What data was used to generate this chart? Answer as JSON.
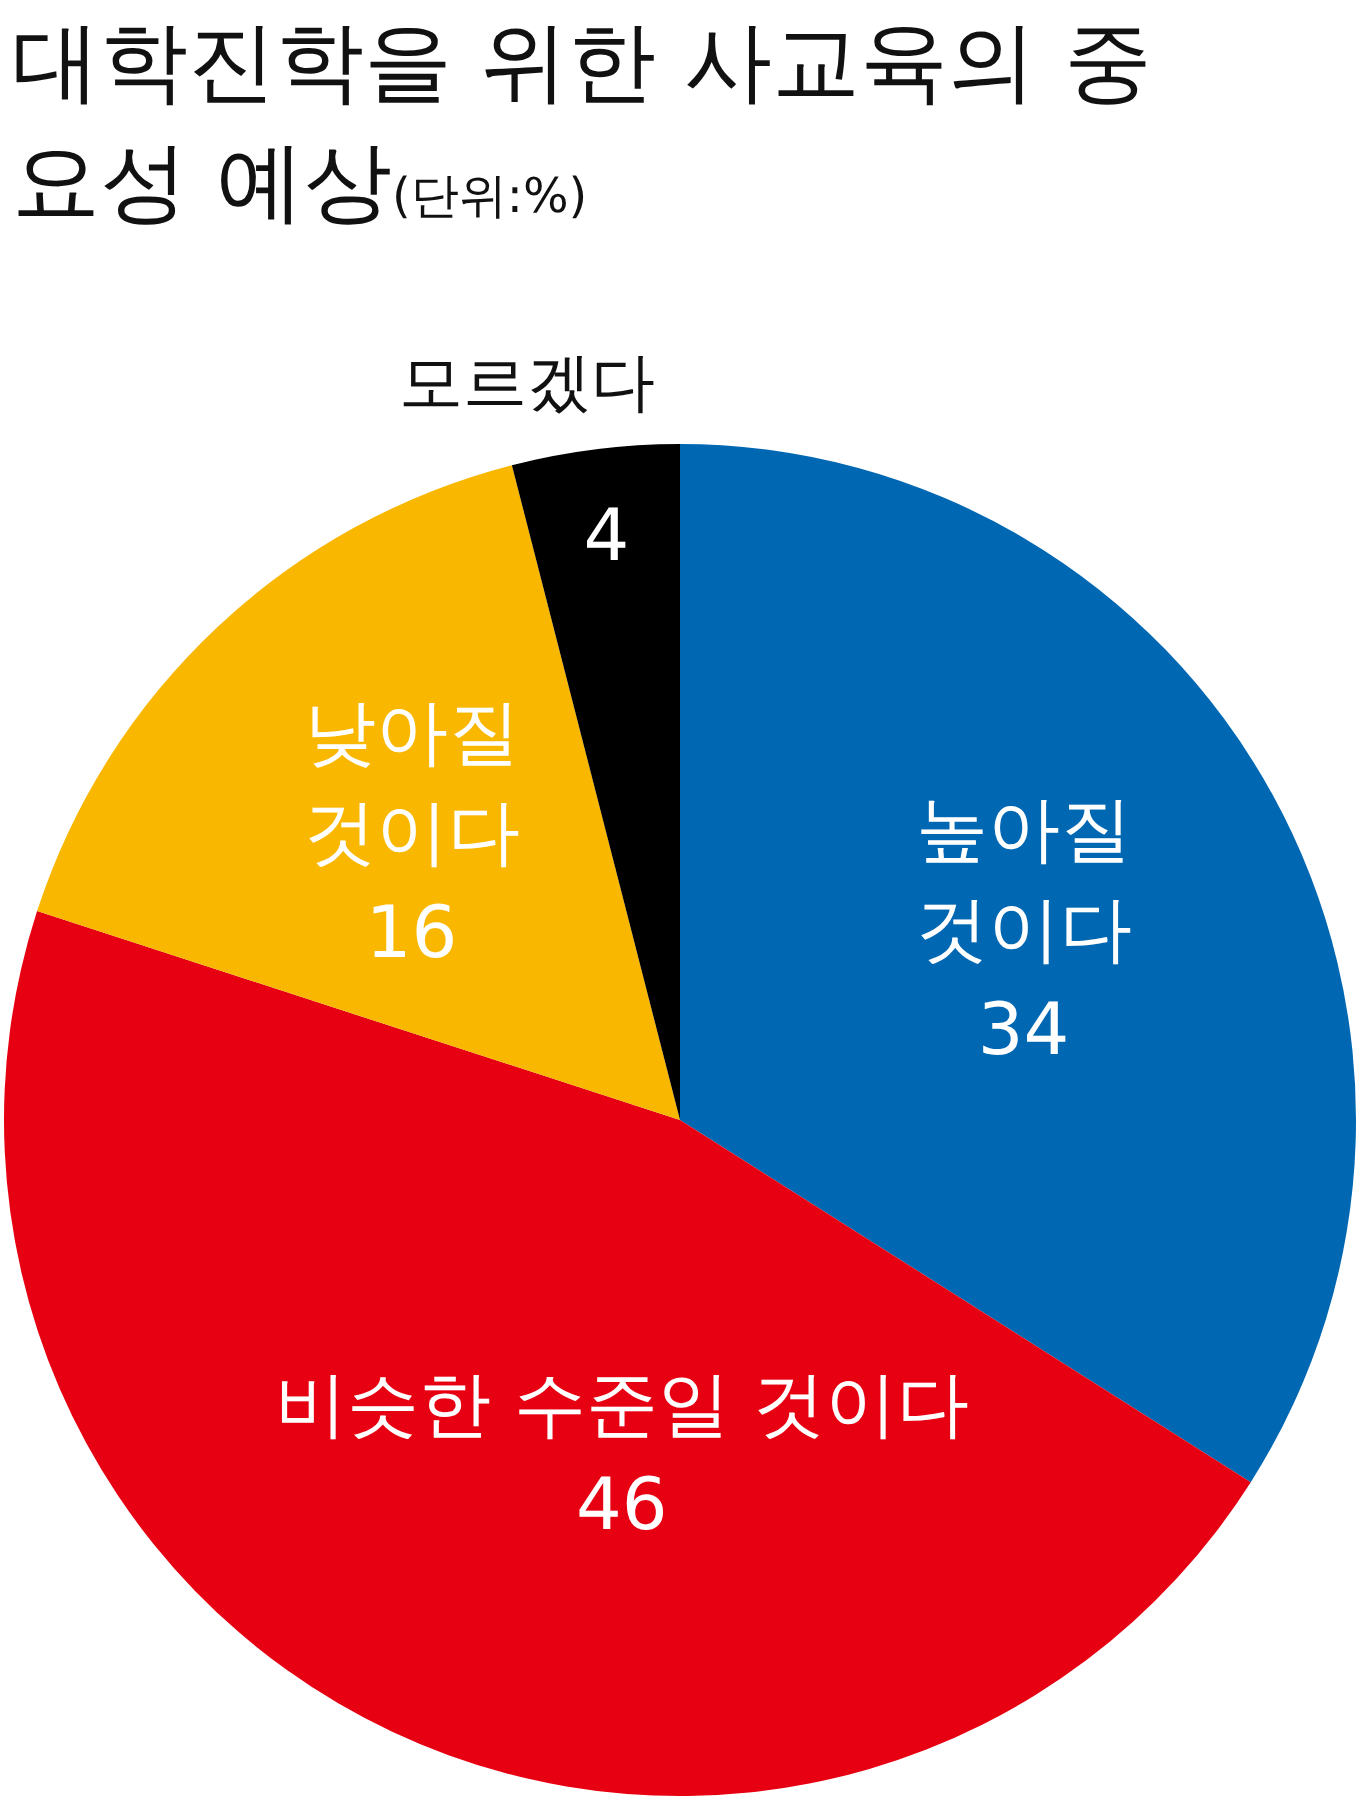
{
  "chart_data": {
    "type": "pie",
    "title": "대학진학을 위한 사교육의 중요성 예상",
    "subtitle": "(단위:%)",
    "categories": [
      "높아질 것이다",
      "비슷한 수준일 것이다",
      "낮아질 것이다",
      "모르겠다"
    ],
    "values": [
      34,
      46,
      16,
      4
    ],
    "colors": [
      "#0067b3",
      "#e60012",
      "#f9b700",
      "#000000"
    ],
    "data_labels": true
  }
}
